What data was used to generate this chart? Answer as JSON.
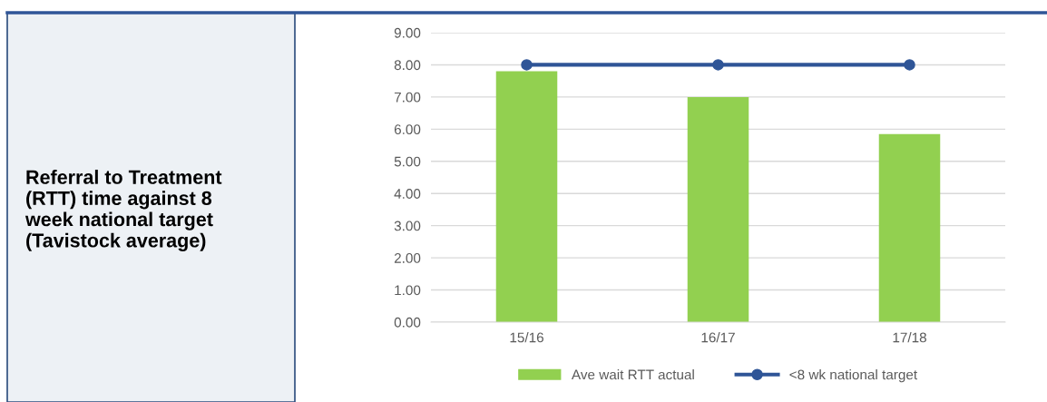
{
  "chart_data": {
    "type": "bar",
    "title": "Referral to Treatment\n(RTT) time against 8\nweek national target\n(Tavistock average)",
    "categories": [
      "15/16",
      "16/17",
      "17/18"
    ],
    "series": [
      {
        "name": "Ave wait RTT actual",
        "color": "#92d050",
        "values": [
          7.8,
          7.0,
          5.85
        ]
      },
      {
        "name": "<8 wk national target",
        "type": "line",
        "color": "#2f5597",
        "values": [
          8,
          8,
          8
        ],
        "marker": "circle"
      }
    ],
    "ylim": [
      0,
      9
    ],
    "yticks": [
      {
        "value": 0,
        "label": "0.00"
      },
      {
        "value": 1,
        "label": "1.00"
      },
      {
        "value": 2,
        "label": "2.00"
      },
      {
        "value": 3,
        "label": "3.00"
      },
      {
        "value": 4,
        "label": "4.00"
      },
      {
        "value": 5,
        "label": "5.00"
      },
      {
        "value": 6,
        "label": "6.00"
      },
      {
        "value": 7,
        "label": "7.00"
      },
      {
        "value": 8,
        "label": "8.00"
      },
      {
        "value": 9,
        "label": "9.00"
      }
    ],
    "grid": "y",
    "legend": "bottom"
  }
}
